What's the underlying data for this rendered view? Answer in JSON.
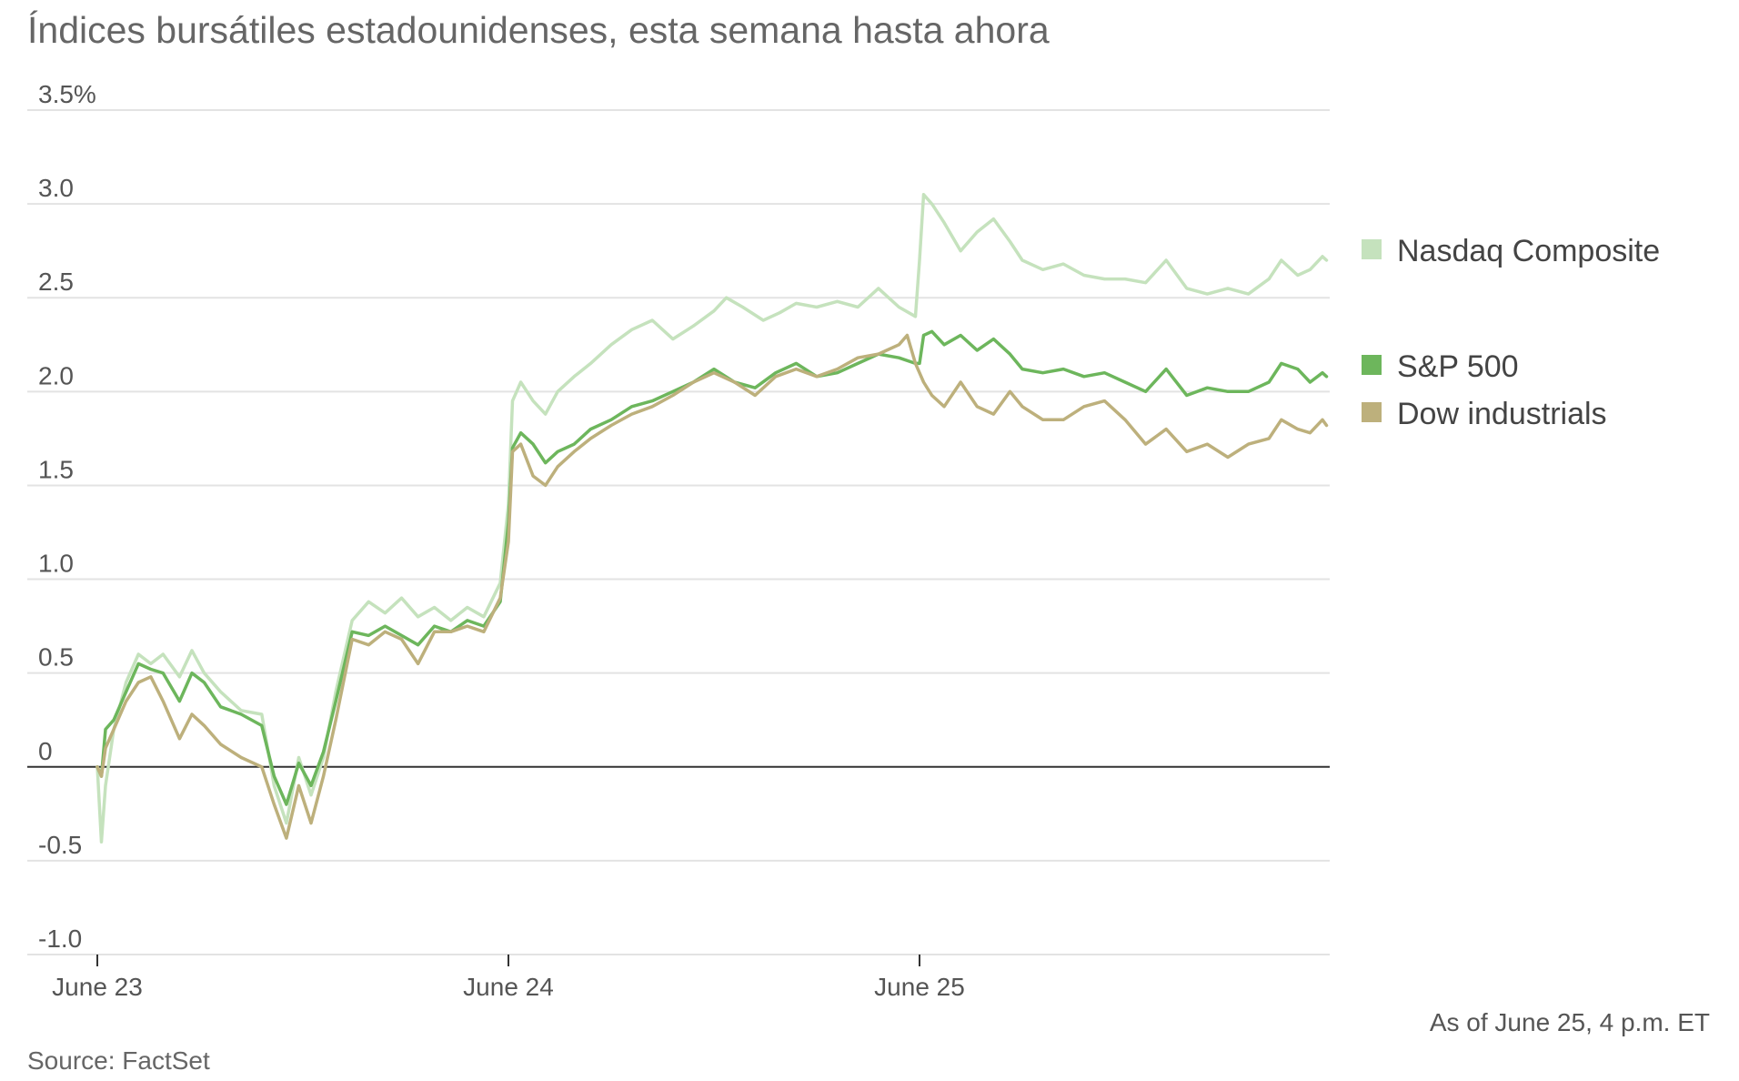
{
  "title": "Índices bursátiles estadounidenses, esta semana hasta ahora",
  "source": "Source: FactSet",
  "as_of": "As of June 25, 4 p.m. ET",
  "colors": {
    "nasdaq": "#c5e2bd",
    "sp500": "#6db65c",
    "dow": "#bdb07c",
    "grid": "#e3e3e3",
    "zero": "#333333",
    "text": "#555555"
  },
  "chart_data": {
    "type": "line",
    "title": "Índices bursátiles estadounidenses, esta semana hasta ahora",
    "ylabel": "",
    "xlabel": "",
    "ylim": [
      -1.0,
      3.5
    ],
    "xlim": [
      0,
      3
    ],
    "y_ticks": [
      {
        "value": 3.5,
        "label": "3.5%"
      },
      {
        "value": 3.0,
        "label": "3.0"
      },
      {
        "value": 2.5,
        "label": "2.5"
      },
      {
        "value": 2.0,
        "label": "2.0"
      },
      {
        "value": 1.5,
        "label": "1.5"
      },
      {
        "value": 1.0,
        "label": "1.0"
      },
      {
        "value": 0.5,
        "label": "0.5"
      },
      {
        "value": 0,
        "label": "0"
      },
      {
        "value": -0.5,
        "label": "-0.5"
      },
      {
        "value": -1.0,
        "label": "-1.0"
      }
    ],
    "x_ticks": [
      {
        "value": 0,
        "label": "June 23"
      },
      {
        "value": 1,
        "label": "June 24"
      },
      {
        "value": 2,
        "label": "June 25"
      }
    ],
    "grid": true,
    "legend_position": "right",
    "x_unit": "trading days since June 23 open",
    "series": [
      {
        "name": "Nasdaq Composite",
        "color_key": "nasdaq",
        "points": [
          [
            0,
            0
          ],
          [
            0.01,
            -0.4
          ],
          [
            0.02,
            -0.1
          ],
          [
            0.04,
            0.2
          ],
          [
            0.07,
            0.45
          ],
          [
            0.1,
            0.6
          ],
          [
            0.13,
            0.55
          ],
          [
            0.16,
            0.6
          ],
          [
            0.2,
            0.48
          ],
          [
            0.23,
            0.62
          ],
          [
            0.26,
            0.5
          ],
          [
            0.3,
            0.4
          ],
          [
            0.35,
            0.3
          ],
          [
            0.4,
            0.28
          ],
          [
            0.43,
            -0.1
          ],
          [
            0.46,
            -0.3
          ],
          [
            0.49,
            0.05
          ],
          [
            0.52,
            -0.15
          ],
          [
            0.55,
            0.05
          ],
          [
            0.58,
            0.4
          ],
          [
            0.62,
            0.78
          ],
          [
            0.66,
            0.88
          ],
          [
            0.7,
            0.82
          ],
          [
            0.74,
            0.9
          ],
          [
            0.78,
            0.8
          ],
          [
            0.82,
            0.85
          ],
          [
            0.86,
            0.78
          ],
          [
            0.9,
            0.85
          ],
          [
            0.94,
            0.8
          ],
          [
            0.98,
            0.98
          ],
          [
            1.0,
            1.4
          ],
          [
            1.01,
            1.95
          ],
          [
            1.03,
            2.05
          ],
          [
            1.06,
            1.95
          ],
          [
            1.09,
            1.88
          ],
          [
            1.12,
            2.0
          ],
          [
            1.16,
            2.08
          ],
          [
            1.2,
            2.15
          ],
          [
            1.25,
            2.25
          ],
          [
            1.3,
            2.33
          ],
          [
            1.35,
            2.38
          ],
          [
            1.4,
            2.28
          ],
          [
            1.45,
            2.35
          ],
          [
            1.5,
            2.43
          ],
          [
            1.53,
            2.5
          ],
          [
            1.57,
            2.45
          ],
          [
            1.62,
            2.38
          ],
          [
            1.66,
            2.42
          ],
          [
            1.7,
            2.47
          ],
          [
            1.75,
            2.45
          ],
          [
            1.8,
            2.48
          ],
          [
            1.85,
            2.45
          ],
          [
            1.9,
            2.55
          ],
          [
            1.95,
            2.45
          ],
          [
            1.99,
            2.4
          ],
          [
            2.0,
            2.7
          ],
          [
            2.01,
            3.05
          ],
          [
            2.03,
            3.0
          ],
          [
            2.06,
            2.9
          ],
          [
            2.1,
            2.75
          ],
          [
            2.14,
            2.85
          ],
          [
            2.18,
            2.92
          ],
          [
            2.22,
            2.8
          ],
          [
            2.25,
            2.7
          ],
          [
            2.3,
            2.65
          ],
          [
            2.35,
            2.68
          ],
          [
            2.4,
            2.62
          ],
          [
            2.45,
            2.6
          ],
          [
            2.5,
            2.6
          ],
          [
            2.55,
            2.58
          ],
          [
            2.6,
            2.7
          ],
          [
            2.65,
            2.55
          ],
          [
            2.7,
            2.52
          ],
          [
            2.75,
            2.55
          ],
          [
            2.8,
            2.52
          ],
          [
            2.85,
            2.6
          ],
          [
            2.88,
            2.7
          ],
          [
            2.92,
            2.62
          ],
          [
            2.95,
            2.65
          ],
          [
            2.98,
            2.72
          ],
          [
            2.99,
            2.7
          ]
        ]
      },
      {
        "name": "S&P 500",
        "color_key": "sp500",
        "points": [
          [
            0,
            0
          ],
          [
            0.01,
            -0.05
          ],
          [
            0.02,
            0.2
          ],
          [
            0.04,
            0.25
          ],
          [
            0.07,
            0.4
          ],
          [
            0.1,
            0.55
          ],
          [
            0.13,
            0.52
          ],
          [
            0.16,
            0.5
          ],
          [
            0.2,
            0.35
          ],
          [
            0.23,
            0.5
          ],
          [
            0.26,
            0.45
          ],
          [
            0.3,
            0.32
          ],
          [
            0.35,
            0.28
          ],
          [
            0.4,
            0.22
          ],
          [
            0.43,
            -0.05
          ],
          [
            0.46,
            -0.2
          ],
          [
            0.49,
            0.02
          ],
          [
            0.52,
            -0.1
          ],
          [
            0.55,
            0.08
          ],
          [
            0.58,
            0.35
          ],
          [
            0.62,
            0.72
          ],
          [
            0.66,
            0.7
          ],
          [
            0.7,
            0.75
          ],
          [
            0.74,
            0.7
          ],
          [
            0.78,
            0.65
          ],
          [
            0.82,
            0.75
          ],
          [
            0.86,
            0.72
          ],
          [
            0.9,
            0.78
          ],
          [
            0.94,
            0.75
          ],
          [
            0.98,
            0.88
          ],
          [
            1.0,
            1.3
          ],
          [
            1.01,
            1.7
          ],
          [
            1.03,
            1.78
          ],
          [
            1.06,
            1.72
          ],
          [
            1.09,
            1.62
          ],
          [
            1.12,
            1.68
          ],
          [
            1.16,
            1.72
          ],
          [
            1.2,
            1.8
          ],
          [
            1.25,
            1.85
          ],
          [
            1.3,
            1.92
          ],
          [
            1.35,
            1.95
          ],
          [
            1.4,
            2.0
          ],
          [
            1.45,
            2.05
          ],
          [
            1.5,
            2.12
          ],
          [
            1.55,
            2.05
          ],
          [
            1.6,
            2.02
          ],
          [
            1.65,
            2.1
          ],
          [
            1.7,
            2.15
          ],
          [
            1.75,
            2.08
          ],
          [
            1.8,
            2.1
          ],
          [
            1.85,
            2.15
          ],
          [
            1.9,
            2.2
          ],
          [
            1.95,
            2.18
          ],
          [
            1.99,
            2.15
          ],
          [
            2.0,
            2.15
          ],
          [
            2.01,
            2.3
          ],
          [
            2.03,
            2.32
          ],
          [
            2.06,
            2.25
          ],
          [
            2.1,
            2.3
          ],
          [
            2.14,
            2.22
          ],
          [
            2.18,
            2.28
          ],
          [
            2.22,
            2.2
          ],
          [
            2.25,
            2.12
          ],
          [
            2.3,
            2.1
          ],
          [
            2.35,
            2.12
          ],
          [
            2.4,
            2.08
          ],
          [
            2.45,
            2.1
          ],
          [
            2.5,
            2.05
          ],
          [
            2.55,
            2.0
          ],
          [
            2.6,
            2.12
          ],
          [
            2.65,
            1.98
          ],
          [
            2.7,
            2.02
          ],
          [
            2.75,
            2.0
          ],
          [
            2.8,
            2.0
          ],
          [
            2.85,
            2.05
          ],
          [
            2.88,
            2.15
          ],
          [
            2.92,
            2.12
          ],
          [
            2.95,
            2.05
          ],
          [
            2.98,
            2.1
          ],
          [
            2.99,
            2.08
          ]
        ]
      },
      {
        "name": "Dow industrials",
        "color_key": "dow",
        "points": [
          [
            0,
            0
          ],
          [
            0.01,
            -0.05
          ],
          [
            0.02,
            0.1
          ],
          [
            0.04,
            0.2
          ],
          [
            0.07,
            0.35
          ],
          [
            0.1,
            0.45
          ],
          [
            0.13,
            0.48
          ],
          [
            0.16,
            0.35
          ],
          [
            0.2,
            0.15
          ],
          [
            0.23,
            0.28
          ],
          [
            0.26,
            0.22
          ],
          [
            0.3,
            0.12
          ],
          [
            0.35,
            0.05
          ],
          [
            0.4,
            0.0
          ],
          [
            0.43,
            -0.2
          ],
          [
            0.46,
            -0.38
          ],
          [
            0.49,
            -0.1
          ],
          [
            0.52,
            -0.3
          ],
          [
            0.55,
            -0.05
          ],
          [
            0.58,
            0.25
          ],
          [
            0.62,
            0.68
          ],
          [
            0.66,
            0.65
          ],
          [
            0.7,
            0.72
          ],
          [
            0.74,
            0.68
          ],
          [
            0.78,
            0.55
          ],
          [
            0.82,
            0.72
          ],
          [
            0.86,
            0.72
          ],
          [
            0.9,
            0.75
          ],
          [
            0.94,
            0.72
          ],
          [
            0.98,
            0.9
          ],
          [
            1.0,
            1.2
          ],
          [
            1.01,
            1.68
          ],
          [
            1.03,
            1.72
          ],
          [
            1.06,
            1.55
          ],
          [
            1.09,
            1.5
          ],
          [
            1.12,
            1.6
          ],
          [
            1.16,
            1.68
          ],
          [
            1.2,
            1.75
          ],
          [
            1.25,
            1.82
          ],
          [
            1.3,
            1.88
          ],
          [
            1.35,
            1.92
          ],
          [
            1.4,
            1.98
          ],
          [
            1.45,
            2.05
          ],
          [
            1.5,
            2.1
          ],
          [
            1.55,
            2.05
          ],
          [
            1.6,
            1.98
          ],
          [
            1.65,
            2.08
          ],
          [
            1.7,
            2.12
          ],
          [
            1.75,
            2.08
          ],
          [
            1.8,
            2.12
          ],
          [
            1.85,
            2.18
          ],
          [
            1.9,
            2.2
          ],
          [
            1.95,
            2.25
          ],
          [
            1.97,
            2.3
          ],
          [
            1.99,
            2.15
          ],
          [
            2.0,
            2.1
          ],
          [
            2.01,
            2.05
          ],
          [
            2.03,
            1.98
          ],
          [
            2.06,
            1.92
          ],
          [
            2.1,
            2.05
          ],
          [
            2.14,
            1.92
          ],
          [
            2.18,
            1.88
          ],
          [
            2.22,
            2.0
          ],
          [
            2.25,
            1.92
          ],
          [
            2.3,
            1.85
          ],
          [
            2.35,
            1.85
          ],
          [
            2.4,
            1.92
          ],
          [
            2.45,
            1.95
          ],
          [
            2.5,
            1.85
          ],
          [
            2.55,
            1.72
          ],
          [
            2.6,
            1.8
          ],
          [
            2.65,
            1.68
          ],
          [
            2.7,
            1.72
          ],
          [
            2.75,
            1.65
          ],
          [
            2.8,
            1.72
          ],
          [
            2.85,
            1.75
          ],
          [
            2.88,
            1.85
          ],
          [
            2.92,
            1.8
          ],
          [
            2.95,
            1.78
          ],
          [
            2.98,
            1.85
          ],
          [
            2.99,
            1.82
          ]
        ]
      }
    ],
    "legend": [
      {
        "label": "Nasdaq Composite",
        "color_key": "nasdaq"
      },
      {
        "label": "S&P 500",
        "color_key": "sp500"
      },
      {
        "label": "Dow industrials",
        "color_key": "dow"
      }
    ]
  }
}
